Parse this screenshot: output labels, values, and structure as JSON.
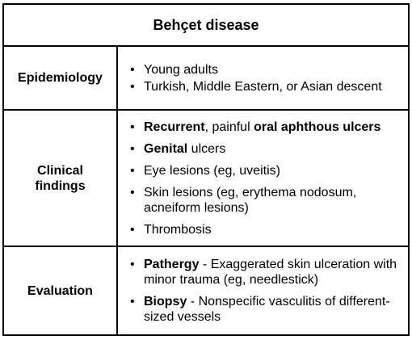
{
  "title": "Behçet disease",
  "rows": [
    {
      "label": "Epidemiology",
      "items": [
        {
          "text": "Young adults"
        },
        {
          "text": "Turkish, Middle Eastern, or Asian descent"
        }
      ]
    },
    {
      "label_line1": "Clinical",
      "label_line2": "findings",
      "items": [
        {
          "b1": "Recurrent",
          "t1": ", painful ",
          "b2": "oral aphthous ulcers"
        },
        {
          "b1": "Genital",
          "t1": " ulcers"
        },
        {
          "text": "Eye lesions (eg, uveitis)"
        },
        {
          "text": "Skin lesions (eg, erythema nodosum, acneiform lesions)"
        },
        {
          "text": "Thrombosis"
        }
      ]
    },
    {
      "label": "Evaluation",
      "items": [
        {
          "b1": "Pathergy",
          "t1": " - Exaggerated skin ulceration with minor trauma (eg, needlestick)"
        },
        {
          "b1": "Biopsy",
          "t1": " - Nonspecific vasculitis of different-sized vessels"
        }
      ]
    }
  ]
}
